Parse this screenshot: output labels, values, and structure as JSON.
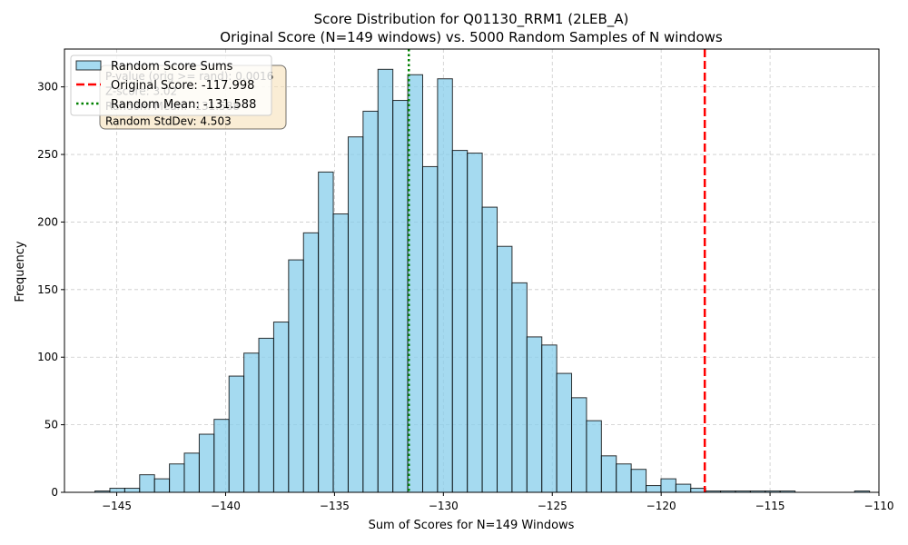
{
  "chart_data": {
    "type": "histogram",
    "title": "Score Distribution for Q01130_RRM1 (2LEB_A)",
    "subtitle": "Original Score (N=149 windows) vs. 5000 Random Samples of N windows",
    "xlabel": "Sum of Scores for N=149 Windows",
    "ylabel": "Frequency",
    "xlim": [
      -147.4,
      -110.0
    ],
    "ylim": [
      0,
      328
    ],
    "xticks": [
      -145,
      -140,
      -135,
      -130,
      -125,
      -120,
      -115,
      -110
    ],
    "yticks": [
      0,
      50,
      100,
      150,
      200,
      250,
      300
    ],
    "grid": true,
    "legend_position": "top-left",
    "bin_start": -146.0,
    "bin_width": 0.684,
    "bars": [
      1,
      3,
      3,
      13,
      10,
      21,
      29,
      43,
      54,
      86,
      103,
      114,
      126,
      172,
      192,
      237,
      206,
      263,
      282,
      313,
      290,
      309,
      241,
      306,
      253,
      251,
      211,
      182,
      155,
      115,
      109,
      88,
      70,
      53,
      27,
      21,
      17,
      5,
      10,
      6,
      3,
      1,
      1,
      1,
      1,
      1,
      1,
      0,
      0,
      0,
      0,
      1
    ],
    "series": [
      {
        "name": "Random Score Sums",
        "kind": "bars",
        "color": "#87ceeb"
      },
      {
        "name": "Original Score: -117.998",
        "kind": "vline",
        "x": -117.998,
        "color": "#ff0000",
        "style": "dashed"
      },
      {
        "name": "Random Mean: -131.588",
        "kind": "vline",
        "x": -131.588,
        "color": "#008000",
        "style": "dotted"
      }
    ],
    "stats_box": [
      "P-value (orig >= rand): 0.0016",
      "Z-score: 3.02",
      "Random Mean: -131.588",
      "Random StdDev: 4.503"
    ]
  }
}
